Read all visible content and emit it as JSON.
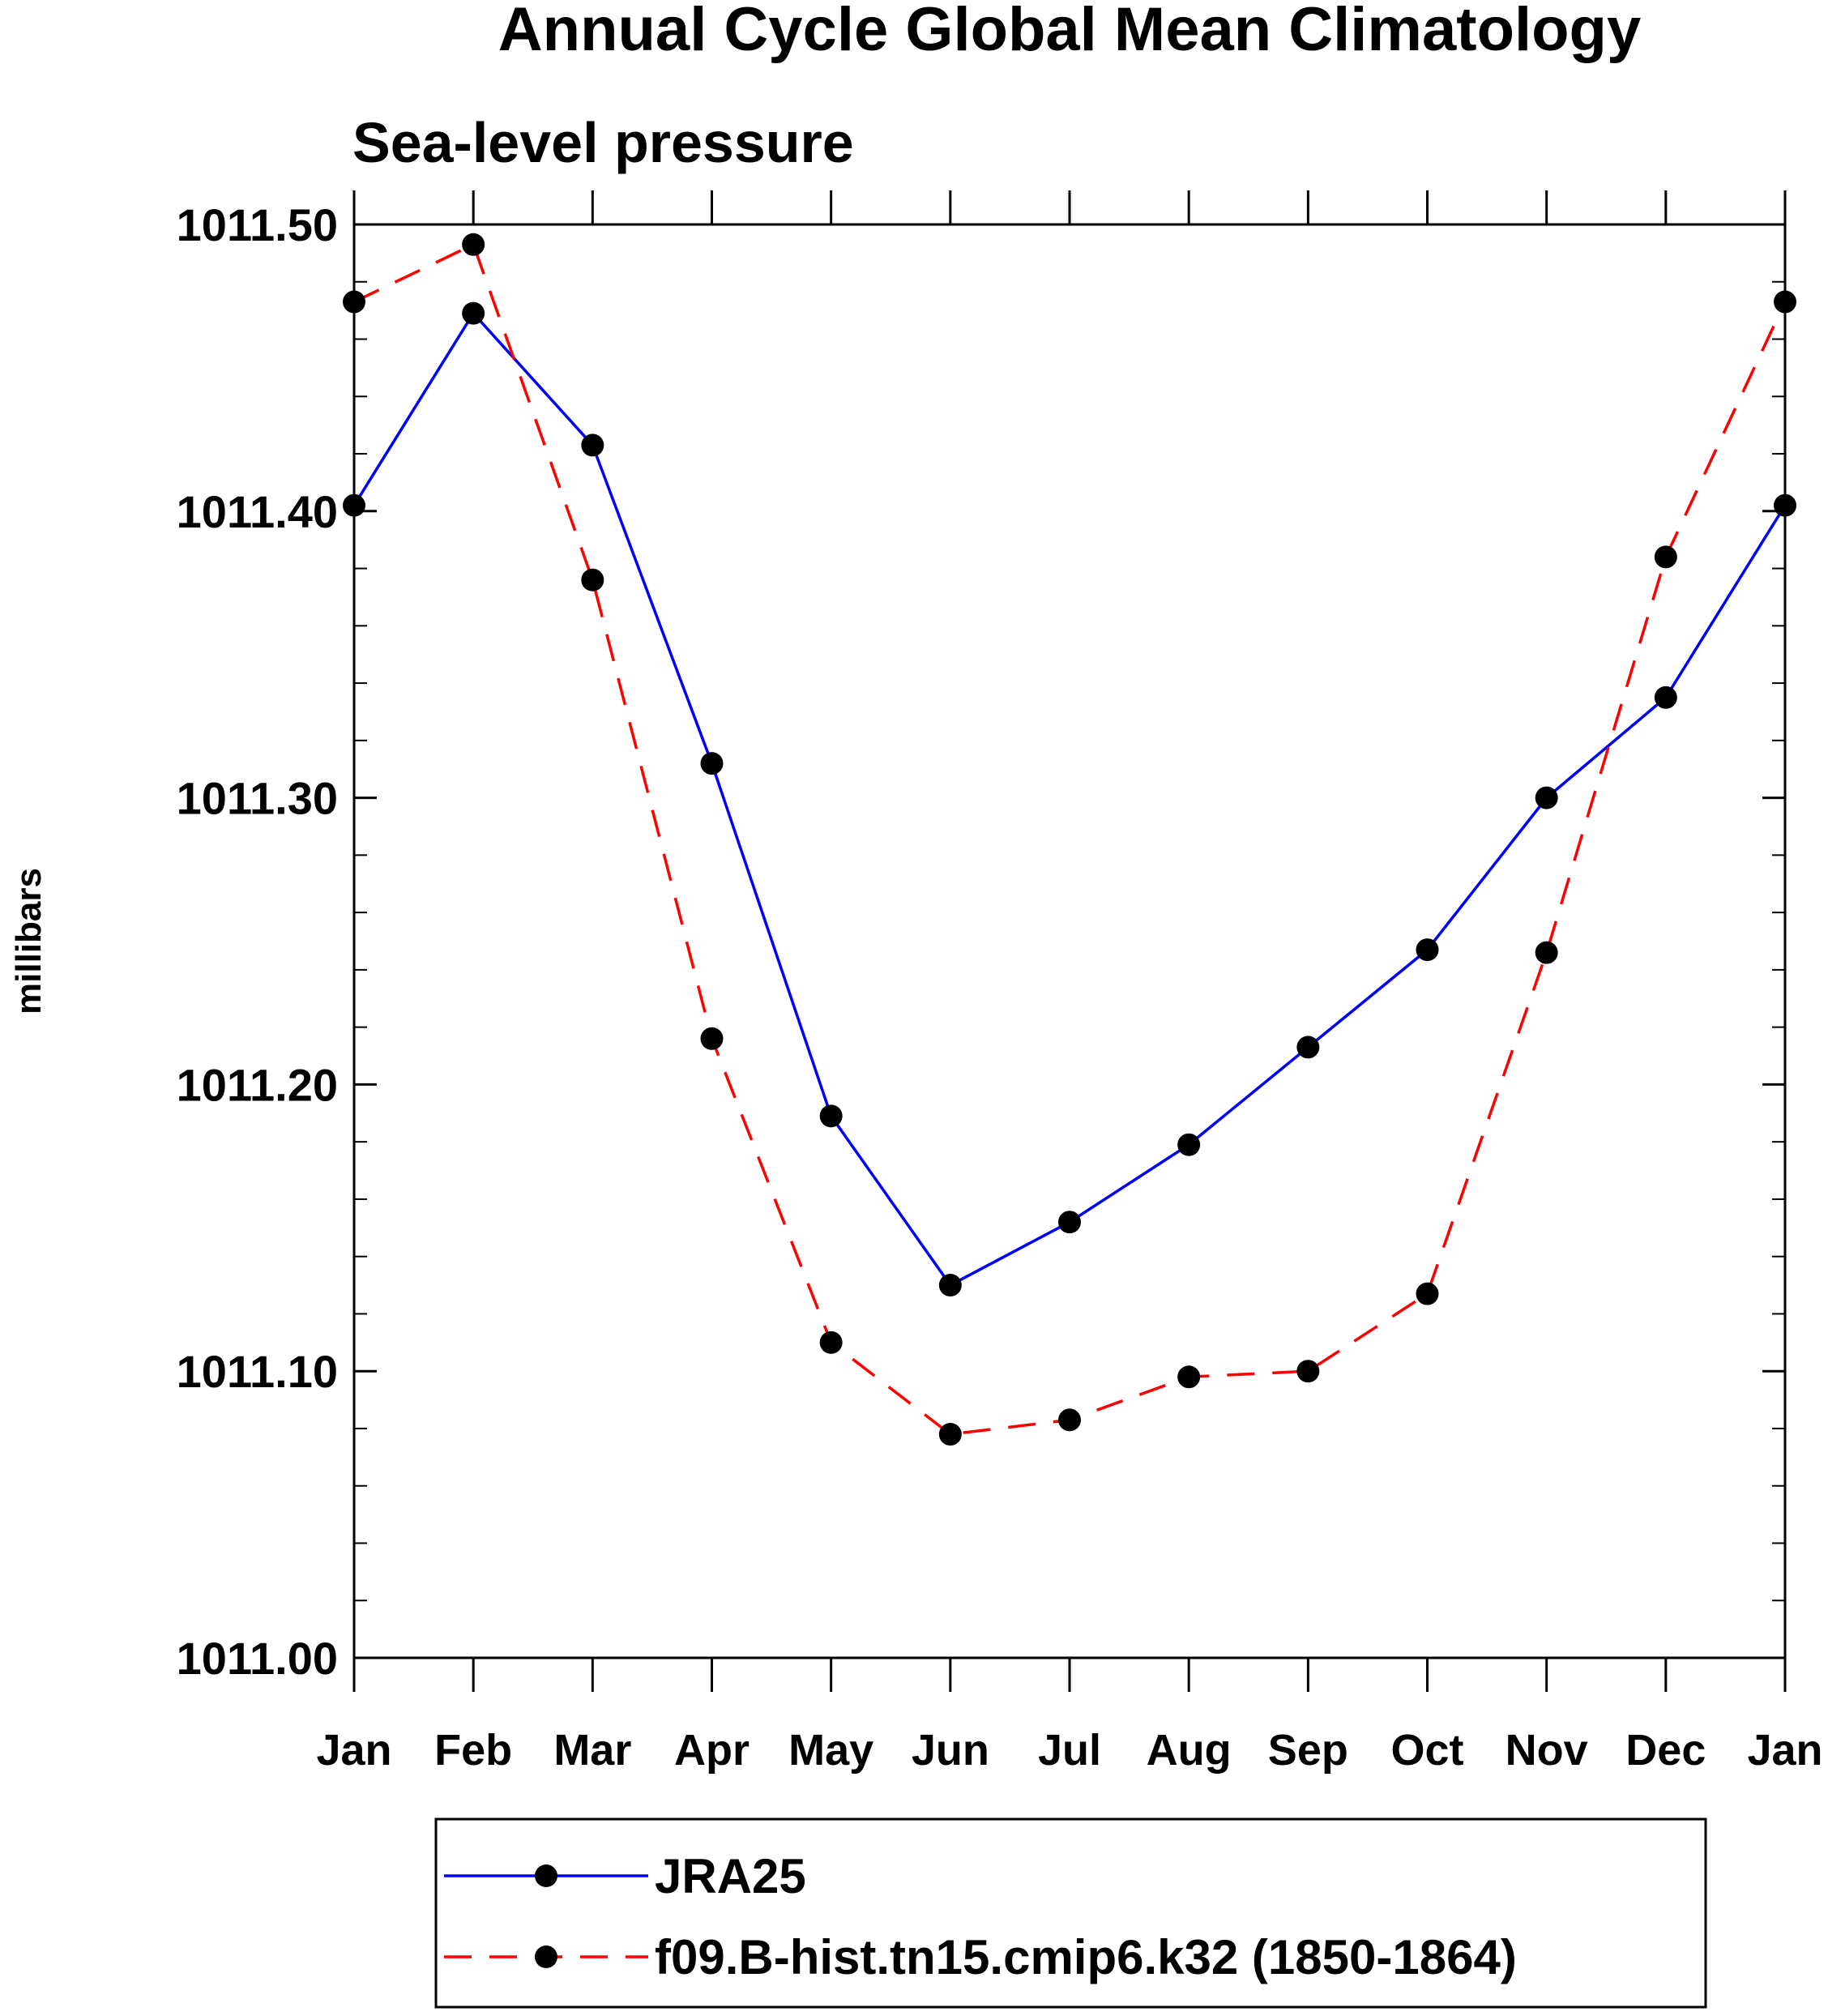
{
  "chart_data": {
    "type": "line",
    "title": "Annual Cycle Global Mean Climatology",
    "subtitle": "Sea-level pressure",
    "xlabel": "",
    "ylabel": "millibars",
    "categories": [
      "Jan",
      "Feb",
      "Mar",
      "Apr",
      "May",
      "Jun",
      "Jul",
      "Aug",
      "Sep",
      "Oct",
      "Nov",
      "Dec",
      "Jan"
    ],
    "ylim": [
      1011.0,
      1011.5
    ],
    "yticks": [
      "1011.00",
      "1011.10",
      "1011.20",
      "1011.30",
      "1011.40",
      "1011.50"
    ],
    "ytick_values": [
      1011.0,
      1011.1,
      1011.2,
      1011.3,
      1011.4,
      1011.5
    ],
    "y_minor_step": 0.02,
    "grid": false,
    "legend_position": "bottom",
    "series": [
      {
        "name": "JRA25",
        "color": "#0000ff",
        "dash": "solid",
        "marker": "filled-circle",
        "values": [
          1011.402,
          1011.469,
          1011.423,
          1011.312,
          1011.189,
          1011.13,
          1011.152,
          1011.179,
          1011.213,
          1011.247,
          1011.3,
          1011.335,
          1011.402
        ]
      },
      {
        "name": "f09.B-hist.tn15.cmip6.k32 (1850-1864)",
        "color": "#ff0000",
        "dash": "dashed",
        "marker": "filled-circle",
        "values": [
          1011.473,
          1011.493,
          1011.376,
          1011.216,
          1011.11,
          1011.078,
          1011.083,
          1011.098,
          1011.1,
          1011.127,
          1011.246,
          1011.384,
          1011.473
        ]
      }
    ]
  }
}
